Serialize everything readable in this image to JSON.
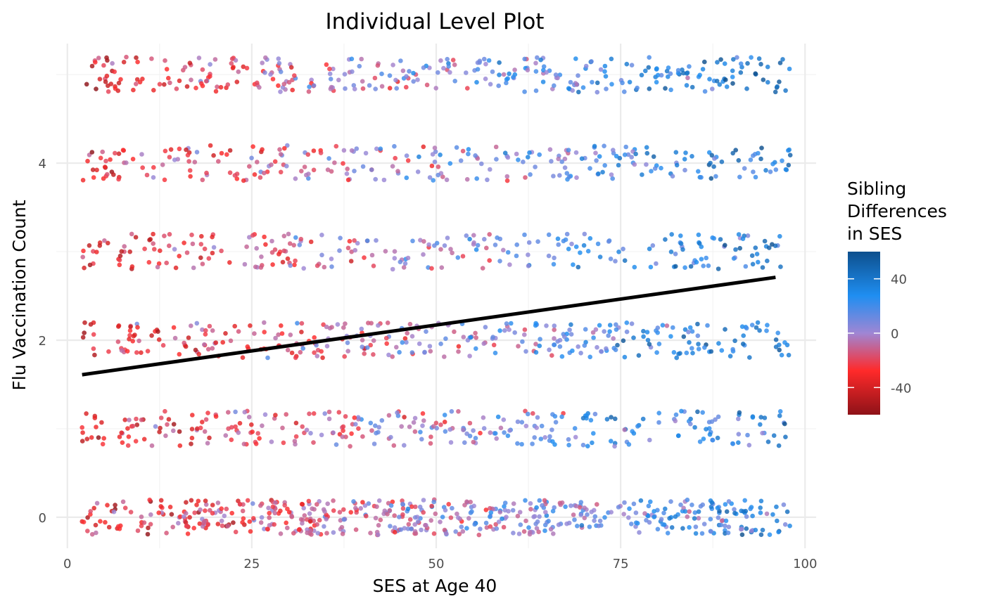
{
  "chart_data": {
    "type": "scatter",
    "title": "Individual Level Plot",
    "xlabel": "SES at Age 40",
    "ylabel": "Flu Vaccination Count",
    "xlim": [
      -1.5,
      101.5
    ],
    "ylim": [
      -0.35,
      5.35
    ],
    "x_ticks": [
      0,
      25,
      50,
      75,
      100
    ],
    "y_ticks": [
      0,
      2,
      4
    ],
    "grid": true,
    "jitter": true,
    "levels": [
      {
        "y": 0,
        "n": 560,
        "blue_bias": 0.35
      },
      {
        "y": 1,
        "n": 300,
        "blue_bias": 0.4
      },
      {
        "y": 2,
        "n": 330,
        "blue_bias": 0.45
      },
      {
        "y": 3,
        "n": 260,
        "blue_bias": 0.45
      },
      {
        "y": 4,
        "n": 280,
        "blue_bias": 0.45
      },
      {
        "y": 5,
        "n": 330,
        "blue_bias": 0.55
      }
    ],
    "trend_line": {
      "x": [
        2,
        96
      ],
      "y": [
        1.61,
        2.71
      ],
      "color": "#000000"
    },
    "legend": {
      "title_lines": [
        "Sibling",
        "Differences",
        "in SES"
      ],
      "placement": "right",
      "domain": [
        -60,
        60
      ],
      "labels": [
        "40",
        "0",
        "-40"
      ],
      "label_values": [
        40,
        0,
        -40
      ],
      "colors": [
        "#8e1218",
        "#ff2a2a",
        "#9f86d4",
        "#1f8ef1",
        "#0d4f8d"
      ]
    }
  }
}
